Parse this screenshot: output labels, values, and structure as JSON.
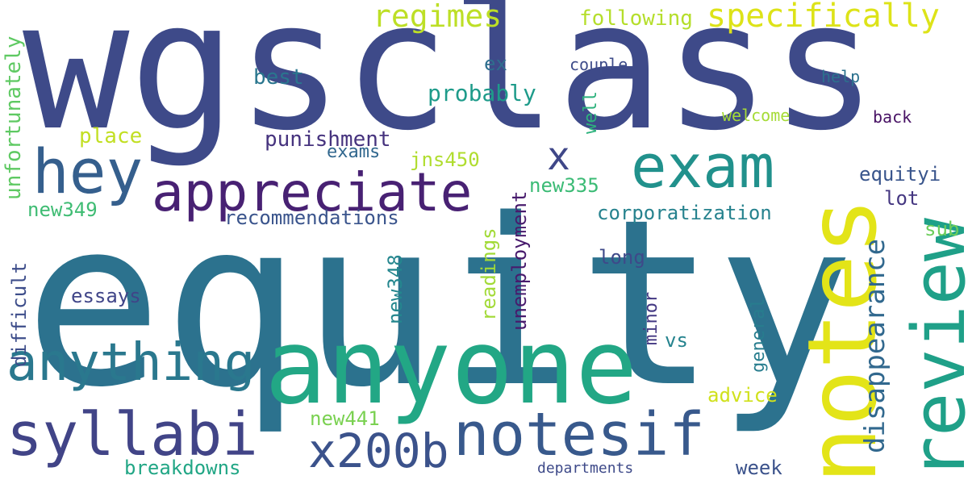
{
  "words": [
    {
      "id": "equity",
      "text": "equity",
      "color": "#2c728e"
    },
    {
      "id": "wgsclass",
      "text": "wgsclass",
      "color": "#3e4a89"
    },
    {
      "id": "anyone",
      "text": "anyone",
      "color": "#22a785"
    },
    {
      "id": "notes",
      "text": "notes",
      "color": "#e3e418"
    },
    {
      "id": "review",
      "text": "review",
      "color": "#1fa088"
    },
    {
      "id": "appreciate",
      "text": "appreciate",
      "color": "#482173"
    },
    {
      "id": "exam",
      "text": "exam",
      "color": "#21918c"
    },
    {
      "id": "hey",
      "text": "hey",
      "color": "#355f8d"
    },
    {
      "id": "syllabi",
      "text": "syllabi",
      "color": "#414487"
    },
    {
      "id": "notesif",
      "text": "notesif",
      "color": "#38598c"
    },
    {
      "id": "anything",
      "text": "anything",
      "color": "#2a788e"
    },
    {
      "id": "x200b",
      "text": "x200b",
      "color": "#3b528b"
    },
    {
      "id": "x",
      "text": "x",
      "color": "#3f4788"
    },
    {
      "id": "specifically",
      "text": "specifically",
      "color": "#dde318"
    },
    {
      "id": "regimes",
      "text": "regimes",
      "color": "#bddf26"
    },
    {
      "id": "disappearance",
      "text": "disappearance",
      "color": "#31688e"
    },
    {
      "id": "unfortunately",
      "text": "unfortunately",
      "color": "#5ec962"
    },
    {
      "id": "probably",
      "text": "probably",
      "color": "#1e9b8a"
    },
    {
      "id": "following",
      "text": "following",
      "color": "#b5de2b"
    },
    {
      "id": "punishment",
      "text": "punishment",
      "color": "#46337e"
    },
    {
      "id": "recommendations",
      "text": "recommendations",
      "color": "#3a548c"
    },
    {
      "id": "corporatization",
      "text": "corporatization",
      "color": "#26828e"
    },
    {
      "id": "best",
      "text": "best",
      "color": "#2a768e"
    },
    {
      "id": "ex",
      "text": "ex",
      "color": "#2e6e8e"
    },
    {
      "id": "couple",
      "text": "couple",
      "color": "#3e4c8a"
    },
    {
      "id": "help",
      "text": "help",
      "color": "#2c718e"
    },
    {
      "id": "back",
      "text": "back",
      "color": "#471164"
    },
    {
      "id": "welcome",
      "text": "welcome",
      "color": "#a5db36"
    },
    {
      "id": "well",
      "text": "well",
      "color": "#2db27d"
    },
    {
      "id": "place",
      "text": "place",
      "color": "#c2df23"
    },
    {
      "id": "exams",
      "text": "exams",
      "color": "#31678e"
    },
    {
      "id": "jns450",
      "text": "jns450",
      "color": "#b0dd2f"
    },
    {
      "id": "equityi",
      "text": "equityi",
      "color": "#39558c"
    },
    {
      "id": "lot",
      "text": "lot",
      "color": "#453781"
    },
    {
      "id": "new335",
      "text": "new335",
      "color": "#3bbb75"
    },
    {
      "id": "unemployment",
      "text": "unemployment",
      "color": "#481b6d"
    },
    {
      "id": "new349",
      "text": "new349",
      "color": "#3fbc73"
    },
    {
      "id": "sub",
      "text": "sub",
      "color": "#6ccd5a"
    },
    {
      "id": "long",
      "text": "long",
      "color": "#3e4989"
    },
    {
      "id": "difficult",
      "text": "difficult",
      "color": "#3d4d8a"
    },
    {
      "id": "new348",
      "text": "new348",
      "color": "#24868e"
    },
    {
      "id": "readings",
      "text": "readings",
      "color": "#a2da37"
    },
    {
      "id": "essays",
      "text": "essays",
      "color": "#404588"
    },
    {
      "id": "minor",
      "text": "minor",
      "color": "#443983"
    },
    {
      "id": "vs",
      "text": "vs",
      "color": "#25838e"
    },
    {
      "id": "general",
      "text": "general",
      "color": "#287d8e"
    },
    {
      "id": "advice",
      "text": "advice",
      "color": "#d0e11c"
    },
    {
      "id": "new441",
      "text": "new441",
      "color": "#7ad151"
    },
    {
      "id": "week",
      "text": "week",
      "color": "#3b528b"
    },
    {
      "id": "breakdowns",
      "text": "breakdowns",
      "color": "#21a685"
    },
    {
      "id": "departments",
      "text": "departments",
      "color": "#3e4a89"
    }
  ]
}
